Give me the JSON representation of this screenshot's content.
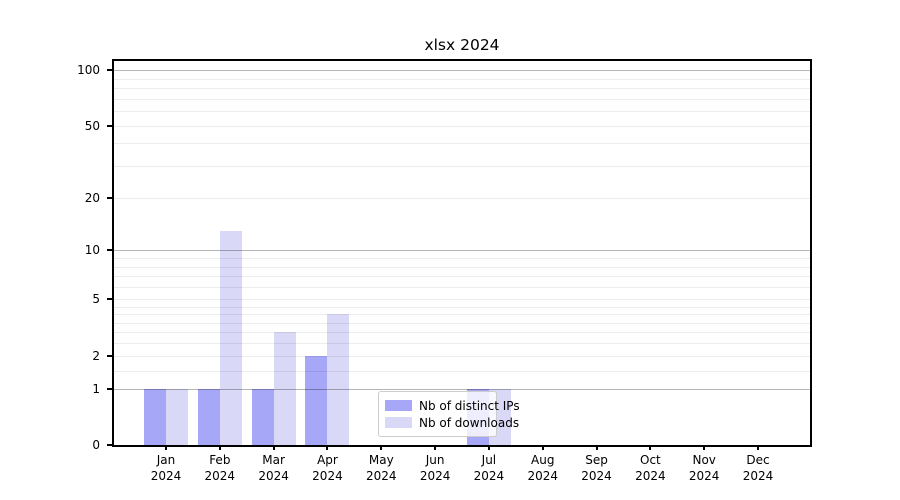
{
  "chart_data": {
    "type": "bar",
    "title": "xlsx 2024",
    "categories": [
      "Jan",
      "Feb",
      "Mar",
      "Apr",
      "May",
      "Jun",
      "Jul",
      "Aug",
      "Sep",
      "Oct",
      "Nov",
      "Dec"
    ],
    "category_year": "2024",
    "series": [
      {
        "name": "Nb of distinct IPs",
        "color": "#a7a7f7",
        "values": [
          1,
          1,
          1,
          2,
          0,
          0,
          1,
          0,
          0,
          0,
          0,
          0
        ]
      },
      {
        "name": "Nb of downloads",
        "color": "#d9d9f7",
        "values": [
          1,
          13,
          3,
          4,
          0,
          0,
          1,
          0,
          0,
          0,
          0,
          0
        ]
      }
    ],
    "yscale": "log10(1+v)",
    "ylim": [
      0,
      112
    ],
    "yticks": [
      0,
      1,
      2,
      5,
      10,
      20,
      50,
      100
    ],
    "grid": {
      "major_values": [
        1,
        10,
        100
      ],
      "minor_values": [
        1.5,
        2,
        2.5,
        3,
        3.5,
        4,
        4.5,
        5,
        6,
        7,
        8,
        9,
        20,
        30,
        40,
        50,
        60,
        70,
        80,
        90
      ]
    },
    "legend": {
      "position": "inside-bottom-center"
    },
    "colors": {
      "axis": "#000000",
      "grid_major": "#b0b0b0",
      "grid_minor": "#ececec",
      "legend_border": "#cccccc",
      "background": "#ffffff"
    }
  }
}
